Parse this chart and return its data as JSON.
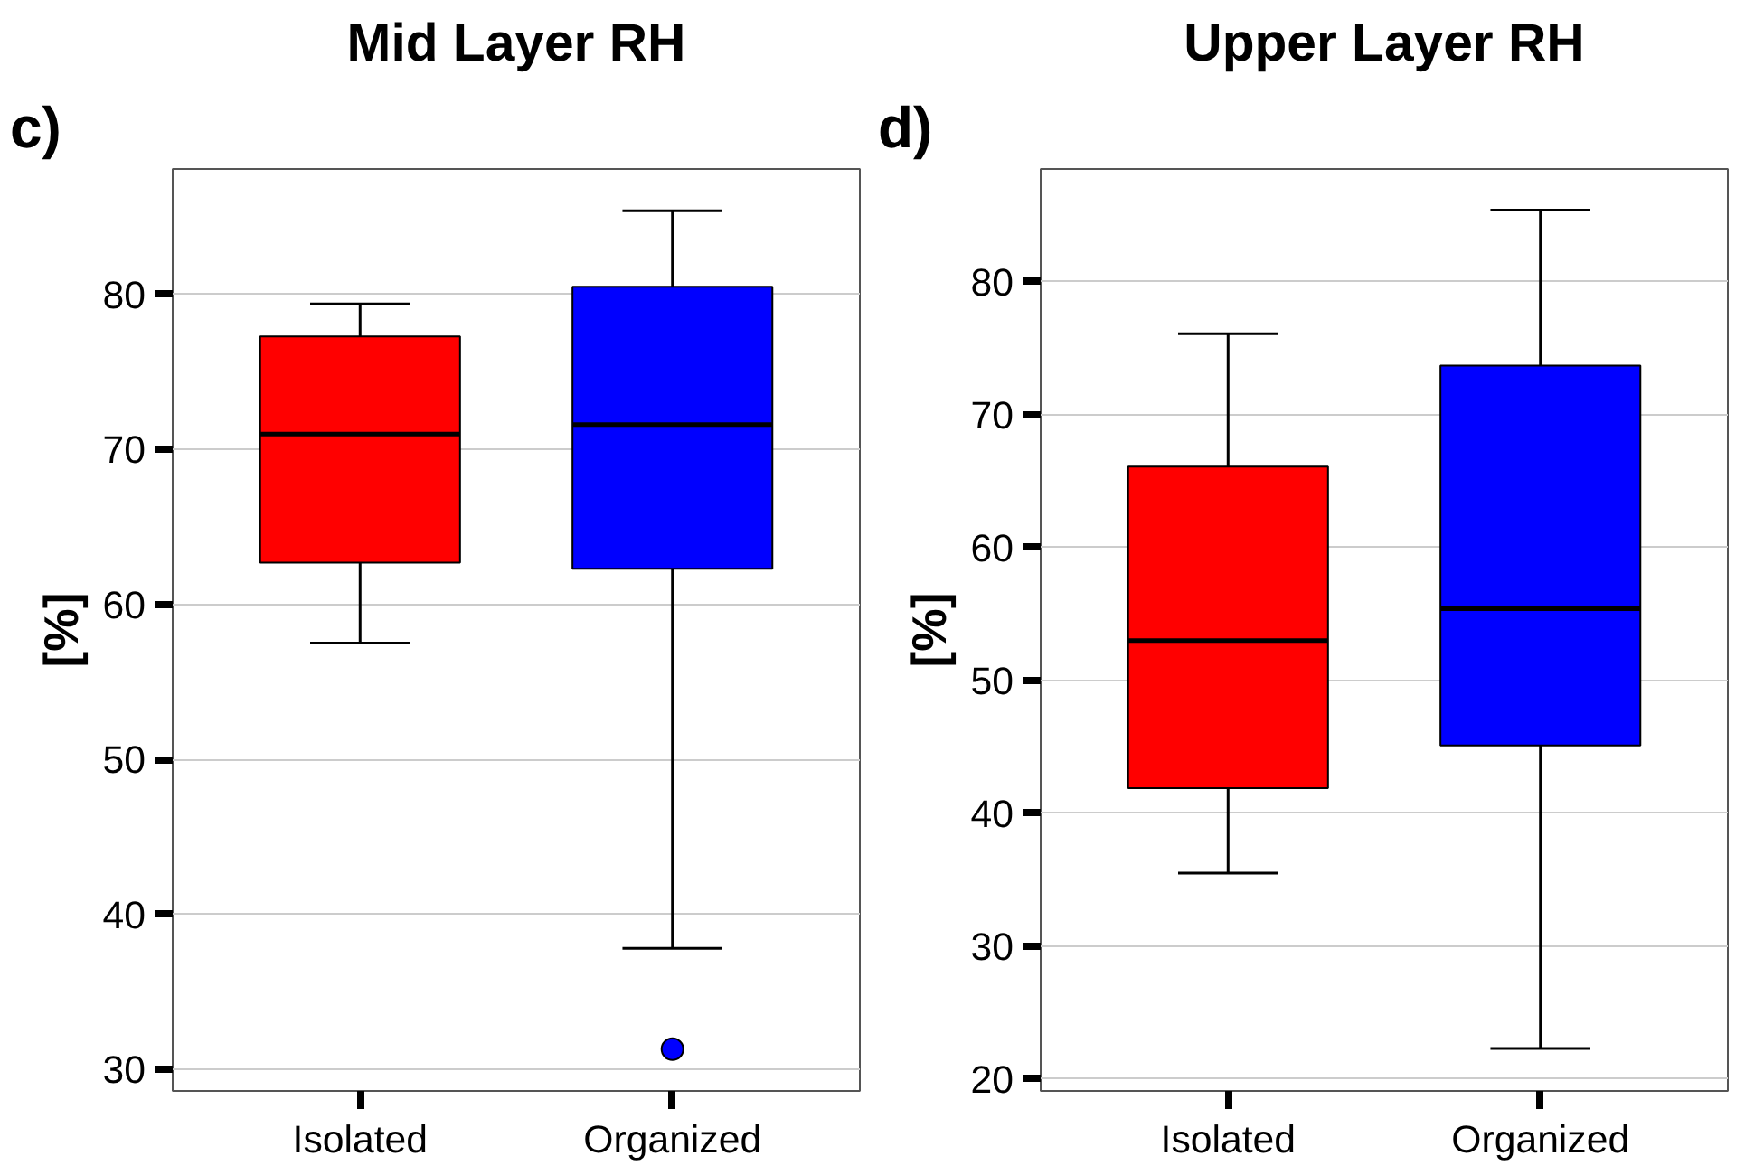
{
  "chart_data": [
    {
      "type": "box",
      "title": "Mid Layer RH",
      "ylabel": "[%]",
      "annotations": [
        "c)"
      ],
      "categories": [
        "Isolated",
        "Organized"
      ],
      "colors": [
        "#ff0000",
        "#0000ff"
      ],
      "boxes": [
        {
          "low": 57.5,
          "q1": 62.7,
          "median": 71.0,
          "q3": 77.3,
          "high": 79.4
        },
        {
          "low": 37.8,
          "q1": 62.3,
          "median": 71.6,
          "q3": 80.5,
          "high": 85.4,
          "outliers": [
            31.3
          ]
        }
      ],
      "ylim": [
        28.6,
        88.1
      ],
      "yticks": [
        30,
        40,
        50,
        60,
        70,
        80
      ],
      "grid": "y"
    },
    {
      "type": "box",
      "title": "Upper Layer RH",
      "ylabel": "[%]",
      "annotations": [
        "d)"
      ],
      "categories": [
        "Isolated",
        "Organized"
      ],
      "colors": [
        "#ff0000",
        "#0000ff"
      ],
      "boxes": [
        {
          "low": 35.5,
          "q1": 41.9,
          "median": 53.0,
          "q3": 66.1,
          "high": 76.1
        },
        {
          "low": 22.3,
          "q1": 45.1,
          "median": 55.4,
          "q3": 73.7,
          "high": 85.4
        }
      ],
      "ylim": [
        19.1,
        88.5
      ],
      "yticks": [
        20,
        30,
        40,
        50,
        60,
        70,
        80
      ],
      "grid": "y"
    }
  ]
}
